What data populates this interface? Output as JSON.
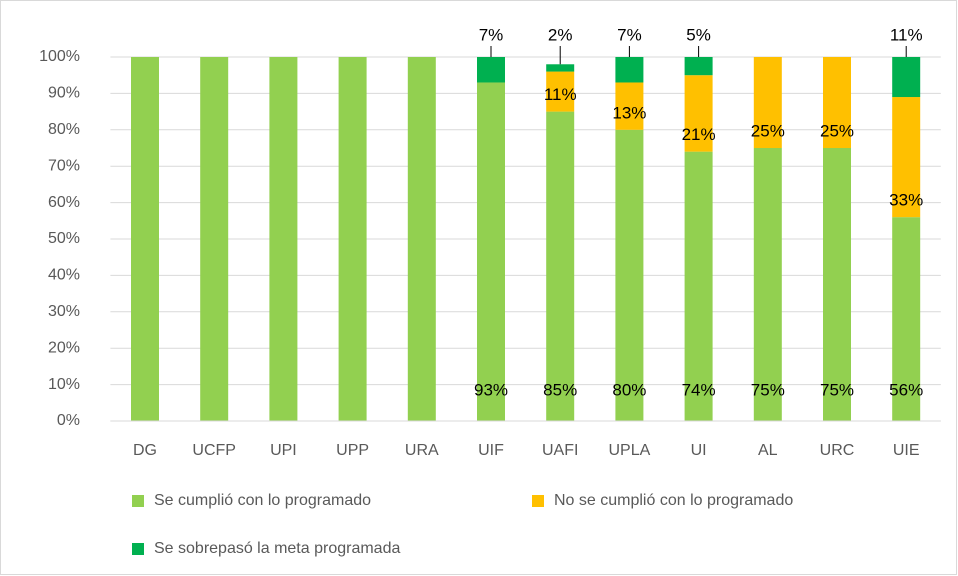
{
  "chart_data": {
    "type": "stacked_bar",
    "categories": [
      "DG",
      "UCFP",
      "UPI",
      "UPP",
      "URA",
      "UIF",
      "UAFI",
      "UPLA",
      "UI",
      "AL",
      "URC",
      "UIE"
    ],
    "series": [
      {
        "name": "Se cumplió con lo programado",
        "color": "#92d050",
        "values": [
          100,
          100,
          100,
          100,
          100,
          93,
          85,
          80,
          74,
          75,
          75,
          56
        ],
        "value_labels": [
          null,
          null,
          null,
          null,
          null,
          "93%",
          "85%",
          "80%",
          "74%",
          "75%",
          "75%",
          "56%"
        ]
      },
      {
        "name": "No se cumplió con lo programado",
        "color": "#ffc000",
        "values": [
          0,
          0,
          0,
          0,
          0,
          0,
          11,
          13,
          21,
          25,
          25,
          33
        ],
        "value_labels": [
          null,
          null,
          null,
          null,
          null,
          null,
          "11%",
          "13%",
          "21%",
          "25%",
          "25%",
          "33%"
        ]
      },
      {
        "name": "Se sobrepasó la meta programada",
        "color": "#00b050",
        "values": [
          0,
          0,
          0,
          0,
          0,
          7,
          2,
          7,
          5,
          0,
          0,
          11
        ],
        "value_labels": [
          null,
          null,
          null,
          null,
          null,
          "7%",
          "2%",
          "7%",
          "5%",
          null,
          null,
          "11%"
        ]
      }
    ],
    "ylim": [
      0,
      100
    ],
    "yticks": [
      {
        "value": 0,
        "label": "0%"
      },
      {
        "value": 10,
        "label": "10%"
      },
      {
        "value": 20,
        "label": "20%"
      },
      {
        "value": 30,
        "label": "30%"
      },
      {
        "value": 40,
        "label": "40%"
      },
      {
        "value": 50,
        "label": "50%"
      },
      {
        "value": 60,
        "label": "60%"
      },
      {
        "value": 70,
        "label": "70%"
      },
      {
        "value": 80,
        "label": "80%"
      },
      {
        "value": 90,
        "label": "90%"
      },
      {
        "value": 100,
        "label": "100%"
      }
    ],
    "grid": true,
    "legend": "bottom"
  }
}
